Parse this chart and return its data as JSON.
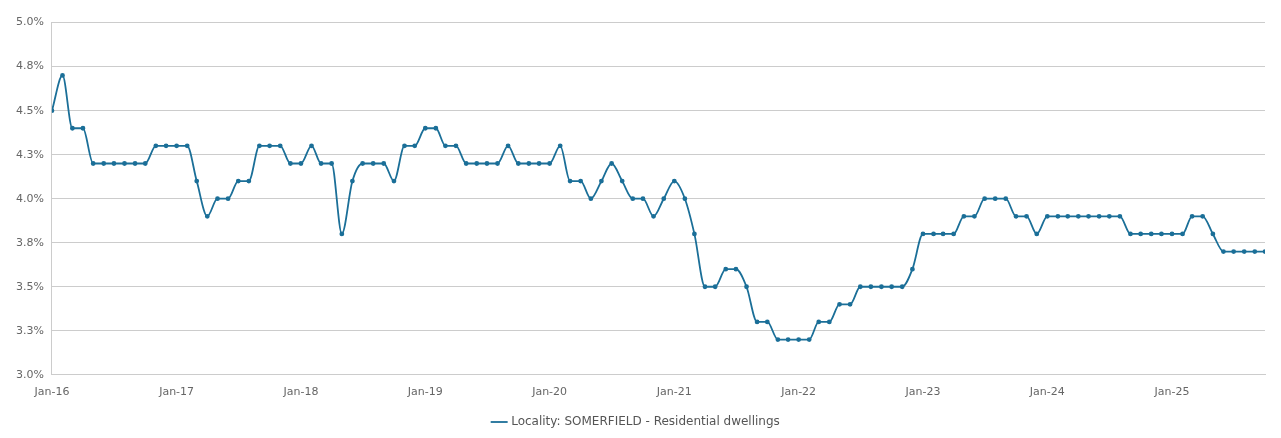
{
  "chart_data": {
    "type": "line",
    "x": [
      "2016-01",
      "2016-02",
      "2016-03",
      "2016-04",
      "2016-05",
      "2016-06",
      "2016-07",
      "2016-08",
      "2016-09",
      "2016-10",
      "2016-11",
      "2016-12",
      "2017-01",
      "2017-02",
      "2017-03",
      "2017-04",
      "2017-05",
      "2017-06",
      "2017-07",
      "2017-08",
      "2017-09",
      "2017-10",
      "2017-11",
      "2017-12",
      "2018-01",
      "2018-02",
      "2018-03",
      "2018-04",
      "2018-05",
      "2018-06",
      "2018-07",
      "2018-08",
      "2018-09",
      "2018-10",
      "2018-11",
      "2018-12",
      "2019-01",
      "2019-02",
      "2019-03",
      "2019-04",
      "2019-05",
      "2019-06",
      "2019-07",
      "2019-08",
      "2019-09",
      "2019-10",
      "2019-11",
      "2019-12",
      "2020-01",
      "2020-02",
      "2020-03",
      "2020-04",
      "2020-05",
      "2020-06",
      "2020-07",
      "2020-08",
      "2020-09",
      "2020-10",
      "2020-11",
      "2020-12",
      "2021-01",
      "2021-02",
      "2021-03",
      "2021-04",
      "2021-05",
      "2021-06",
      "2021-07",
      "2021-08",
      "2021-09",
      "2021-10",
      "2021-11",
      "2021-12",
      "2022-01",
      "2022-02",
      "2022-03",
      "2022-04",
      "2022-05",
      "2022-06",
      "2022-07",
      "2022-08",
      "2022-09",
      "2022-10",
      "2022-11",
      "2022-12",
      "2023-01",
      "2023-02",
      "2023-03",
      "2023-04",
      "2023-05",
      "2023-06",
      "2023-07",
      "2023-08",
      "2023-09",
      "2023-10",
      "2023-11",
      "2023-12",
      "2024-01",
      "2024-02",
      "2024-03",
      "2024-04",
      "2024-05",
      "2024-06",
      "2024-07",
      "2024-08",
      "2024-09",
      "2024-10",
      "2024-11",
      "2024-12",
      "2025-01",
      "2025-02",
      "2025-03",
      "2025-04",
      "2025-05",
      "2025-06",
      "2025-07",
      "2025-08",
      "2025-09",
      "2025-10"
    ],
    "series": [
      {
        "name": "Locality: SOMERFIELD - Residential dwellings",
        "color": "#1b6f98",
        "values": [
          4.5,
          4.7,
          4.4,
          4.4,
          4.2,
          4.2,
          4.2,
          4.2,
          4.2,
          4.2,
          4.3,
          4.3,
          4.3,
          4.3,
          4.1,
          3.9,
          4.0,
          4.0,
          4.1,
          4.1,
          4.3,
          4.3,
          4.3,
          4.2,
          4.2,
          4.3,
          4.2,
          4.2,
          3.8,
          4.1,
          4.2,
          4.2,
          4.2,
          4.1,
          4.3,
          4.3,
          4.4,
          4.4,
          4.3,
          4.3,
          4.2,
          4.2,
          4.2,
          4.2,
          4.3,
          4.2,
          4.2,
          4.2,
          4.2,
          4.3,
          4.1,
          4.1,
          4.0,
          4.1,
          4.2,
          4.1,
          4.0,
          4.0,
          3.9,
          4.0,
          4.1,
          4.0,
          3.8,
          3.5,
          3.5,
          3.6,
          3.6,
          3.5,
          3.3,
          3.3,
          3.2,
          3.2,
          3.2,
          3.2,
          3.3,
          3.3,
          3.4,
          3.4,
          3.5,
          3.5,
          3.5,
          3.5,
          3.5,
          3.6,
          3.8,
          3.8,
          3.8,
          3.8,
          3.9,
          3.9,
          4.0,
          4.0,
          4.0,
          3.9,
          3.9,
          3.8,
          3.9,
          3.9,
          3.9,
          3.9,
          3.9,
          3.9,
          3.9,
          3.9,
          3.8,
          3.8,
          3.8,
          3.8,
          3.8,
          3.8,
          3.9,
          3.9,
          3.8,
          3.7,
          3.7,
          3.7,
          3.7,
          3.7
        ]
      }
    ],
    "xlim": [
      "2016-01",
      "2025-10"
    ],
    "xticks": [
      {
        "value": "2016-01",
        "label": "Jan-16"
      },
      {
        "value": "2017-01",
        "label": "Jan-17"
      },
      {
        "value": "2018-01",
        "label": "Jan-18"
      },
      {
        "value": "2019-01",
        "label": "Jan-19"
      },
      {
        "value": "2020-01",
        "label": "Jan-20"
      },
      {
        "value": "2021-01",
        "label": "Jan-21"
      },
      {
        "value": "2022-01",
        "label": "Jan-22"
      },
      {
        "value": "2023-01",
        "label": "Jan-23"
      },
      {
        "value": "2024-01",
        "label": "Jan-24"
      },
      {
        "value": "2025-01",
        "label": "Jan-25"
      }
    ],
    "ylim": [
      3.0,
      5.0
    ],
    "yticks": [
      {
        "value": 3.0,
        "label": "3.0%"
      },
      {
        "value": 3.25,
        "label": "3.3%"
      },
      {
        "value": 3.5,
        "label": "3.5%"
      },
      {
        "value": 3.75,
        "label": "3.8%"
      },
      {
        "value": 4.0,
        "label": "4.0%"
      },
      {
        "value": 4.25,
        "label": "4.3%"
      },
      {
        "value": 4.5,
        "label": "4.5%"
      },
      {
        "value": 4.75,
        "label": "4.8%"
      },
      {
        "value": 5.0,
        "label": "5.0%"
      }
    ],
    "grid": "y",
    "legend": "bottom",
    "marker": "circle",
    "line_style": "solid"
  }
}
